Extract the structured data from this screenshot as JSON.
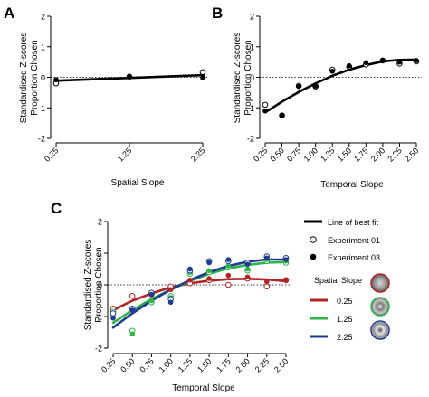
{
  "panels": {
    "A": {
      "letter": "A",
      "chart_data": {
        "type": "scatter",
        "x_tick_labels": [
          "0.25",
          "1.25",
          "2.25"
        ],
        "x_values": [
          0.25,
          1.25,
          2.25
        ],
        "xlim": [
          0.25,
          2.25
        ],
        "ylim": [
          -2,
          2
        ],
        "y_ticks": [
          -2,
          -1,
          0,
          1,
          2
        ],
        "xlabel": "Spatial Slope",
        "ylabel_line1": "Standardised Z-scores",
        "ylabel_line2": "Proportion Chosen",
        "zero_line": true,
        "series": [
          {
            "marker": "open",
            "x": [
              0.25,
              1.25,
              2.25
            ],
            "y": [
              -0.2,
              0.02,
              0.17
            ]
          },
          {
            "marker": "filled",
            "x": [
              0.25,
              1.25,
              2.25
            ],
            "y": [
              -0.08,
              0.03,
              -0.02
            ]
          }
        ],
        "fit_lines": [
          {
            "type": "linear",
            "color": "#000000",
            "intercept_at_0_25": -0.11,
            "slope": 0.09
          }
        ]
      }
    },
    "B": {
      "letter": "B",
      "chart_data": {
        "type": "scatter",
        "x_tick_labels": [
          "0.25",
          "0.50",
          "0.75",
          "1.00",
          "1.25",
          "1.50",
          "1.75",
          "2.00",
          "2.25",
          "2.50"
        ],
        "x_values": [
          0.25,
          0.5,
          0.75,
          1.0,
          1.25,
          1.5,
          1.75,
          2.0,
          2.25,
          2.5
        ],
        "xlim": [
          0.25,
          2.5
        ],
        "ylim": [
          -2,
          2
        ],
        "y_ticks": [
          -2,
          -1,
          0,
          1,
          2
        ],
        "xlabel": "Temporal Slope",
        "ylabel_line1": "Standardised Z-scores",
        "ylabel_line2": "Proportion Chosen",
        "zero_line": true,
        "series": [
          {
            "marker": "open",
            "x": [
              0.25,
              0.5,
              0.75,
              1.0,
              1.25,
              1.5,
              1.75,
              2.0,
              2.25,
              2.5
            ],
            "y": [
              -0.9,
              -1.25,
              -0.28,
              -0.3,
              0.25,
              0.35,
              0.42,
              0.55,
              0.45,
              0.52
            ]
          },
          {
            "marker": "filled",
            "x": [
              0.25,
              0.5,
              0.75,
              1.0,
              1.25,
              1.5,
              1.75,
              2.0,
              2.25,
              2.5
            ],
            "y": [
              -1.1,
              -1.25,
              -0.3,
              -0.28,
              0.2,
              0.38,
              0.48,
              0.55,
              0.5,
              0.55
            ]
          }
        ],
        "fit_lines": [
          {
            "type": "quadratic",
            "color": "#000000",
            "x": [
              0.25,
              0.5,
              0.75,
              1.0,
              1.25,
              1.5,
              1.75,
              2.0,
              2.25,
              2.5
            ],
            "y": [
              -1.15,
              -0.8,
              -0.48,
              -0.2,
              0.05,
              0.25,
              0.4,
              0.52,
              0.57,
              0.58
            ]
          }
        ]
      }
    },
    "C": {
      "letter": "C",
      "chart_data": {
        "type": "scatter",
        "x_tick_labels": [
          "0.25",
          "0.50",
          "0.75",
          "1.00",
          "1.25",
          "1.50",
          "1.75",
          "2.00",
          "2.25",
          "2.50"
        ],
        "x_values": [
          0.25,
          0.5,
          0.75,
          1.0,
          1.25,
          1.5,
          1.75,
          2.0,
          2.25,
          2.5
        ],
        "xlim": [
          0.25,
          2.5
        ],
        "ylim": [
          -2,
          2
        ],
        "y_ticks": [
          -2,
          -1,
          0,
          1,
          2
        ],
        "xlabel": "Temporal Slope",
        "ylabel_line1": "Standardised Z-scores",
        "ylabel_line2": "Proportion Chosen",
        "zero_line": true,
        "series": [
          {
            "color": "#b02424",
            "marker": "open",
            "x": [
              0.25,
              0.5,
              0.75,
              1.0,
              1.25,
              1.5,
              1.75,
              2.0,
              2.25,
              2.5
            ],
            "y": [
              -0.75,
              -0.35,
              -0.3,
              -0.05,
              0.05,
              0.15,
              0.0,
              0.2,
              -0.05,
              0.15
            ]
          },
          {
            "color": "#b02424",
            "marker": "filled",
            "x": [
              0.25,
              0.5,
              0.75,
              1.0,
              1.25,
              1.5,
              1.75,
              2.0,
              2.25,
              2.5
            ],
            "y": [
              -0.85,
              -0.75,
              -0.3,
              -0.15,
              0.15,
              0.2,
              0.3,
              0.25,
              0.1,
              0.15
            ]
          },
          {
            "color": "#2db34a",
            "marker": "open",
            "x": [
              0.25,
              0.5,
              0.75,
              1.0,
              1.25,
              1.5,
              1.75,
              2.0,
              2.25,
              2.5
            ],
            "y": [
              -0.85,
              -1.45,
              -0.55,
              -0.35,
              0.35,
              0.4,
              0.55,
              0.45,
              0.75,
              0.7
            ]
          },
          {
            "color": "#2db34a",
            "marker": "filled",
            "x": [
              0.25,
              0.5,
              0.75,
              1.0,
              1.25,
              1.5,
              1.75,
              2.0,
              2.25,
              2.5
            ],
            "y": [
              -0.95,
              -1.55,
              -0.5,
              -0.4,
              0.4,
              0.45,
              0.6,
              0.5,
              0.8,
              0.75
            ]
          },
          {
            "color": "#1f3a93",
            "marker": "open",
            "x": [
              0.25,
              0.5,
              0.75,
              1.0,
              1.25,
              1.5,
              1.75,
              2.0,
              2.25,
              2.5
            ],
            "y": [
              -0.9,
              -0.75,
              -0.25,
              -0.45,
              0.45,
              0.75,
              0.75,
              0.7,
              0.9,
              0.85
            ]
          },
          {
            "color": "#1f3a93",
            "marker": "filled",
            "x": [
              0.25,
              0.5,
              0.75,
              1.0,
              1.25,
              1.5,
              1.75,
              2.0,
              2.25,
              2.5
            ],
            "y": [
              -1.05,
              -0.8,
              -0.3,
              -0.55,
              0.5,
              0.7,
              0.8,
              0.65,
              0.85,
              0.8
            ]
          }
        ],
        "fit_lines": [
          {
            "name": "0.25",
            "color": "#b02424",
            "x": [
              0.25,
              0.5,
              0.75,
              1.0,
              1.25,
              1.5,
              1.75,
              2.0,
              2.25,
              2.5
            ],
            "y": [
              -0.8,
              -0.5,
              -0.27,
              -0.08,
              0.05,
              0.13,
              0.18,
              0.19,
              0.17,
              0.12
            ]
          },
          {
            "name": "1.25",
            "color": "#2db34a",
            "x": [
              0.25,
              0.5,
              0.75,
              1.0,
              1.25,
              1.5,
              1.75,
              2.0,
              2.25,
              2.5
            ],
            "y": [
              -1.2,
              -0.8,
              -0.45,
              -0.15,
              0.12,
              0.35,
              0.52,
              0.63,
              0.7,
              0.72
            ]
          },
          {
            "name": "2.25",
            "color": "#1f3a93",
            "x": [
              0.25,
              0.5,
              0.75,
              1.0,
              1.25,
              1.5,
              1.75,
              2.0,
              2.25,
              2.5
            ],
            "y": [
              -1.35,
              -0.9,
              -0.5,
              -0.15,
              0.15,
              0.4,
              0.6,
              0.73,
              0.8,
              0.8
            ]
          }
        ]
      }
    }
  },
  "legend": {
    "fit_label": "Line of best fit",
    "exp01_label": "Experiment 01",
    "exp03_label": "Experiment 03",
    "spatial_title": "Spatial Slope",
    "spatial_items": [
      {
        "label": "0.25",
        "color": "#b02424"
      },
      {
        "label": "1.25",
        "color": "#2db34a"
      },
      {
        "label": "2.25",
        "color": "#1f3a93"
      }
    ]
  }
}
